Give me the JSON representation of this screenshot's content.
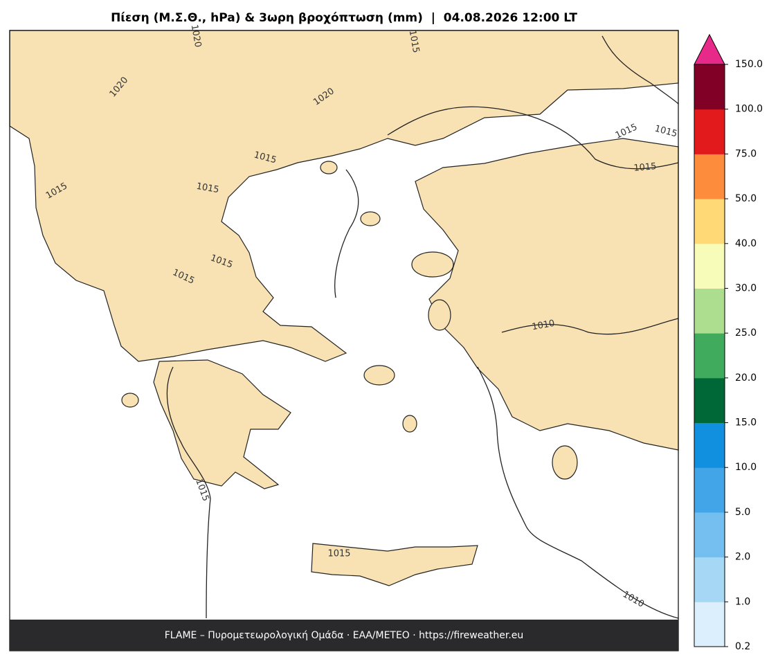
{
  "title": "Πίεση (Μ.Σ.Θ., hPa) & 3ωρη βροχόπτωση (mm)  |  04.08.2026 12:00 LT",
  "footer": "FLAME – Πυρομετεωρολογική Ομάδα · ΕΑΑ/METEO · https://fireweather.eu",
  "colorbar": {
    "ticks": [
      {
        "value": 0.2,
        "label": "0.2"
      },
      {
        "value": 1,
        "label": "1.0"
      },
      {
        "value": 2,
        "label": "2.0"
      },
      {
        "value": 5,
        "label": "5.0"
      },
      {
        "value": 10,
        "label": "10.0"
      },
      {
        "value": 15,
        "label": "15.0"
      },
      {
        "value": 20,
        "label": "20.0"
      },
      {
        "value": 25,
        "label": "25.0"
      },
      {
        "value": 30,
        "label": "30.0"
      },
      {
        "value": 40,
        "label": "40.0"
      },
      {
        "value": 50,
        "label": "50.0"
      },
      {
        "value": 75,
        "label": "75.0"
      },
      {
        "value": 100,
        "label": "100.0"
      },
      {
        "value": 150,
        "label": "150.0"
      }
    ],
    "colors": [
      "#dbeffd",
      "#a6d8f6",
      "#74bff0",
      "#42a5e8",
      "#1290e0",
      "#006837",
      "#41ab5d",
      "#addd8e",
      "#f7fcb9",
      "#fed976",
      "#fd8d3c",
      "#e31a1c",
      "#800026"
    ],
    "extend_color": "#e7298a"
  },
  "contour_labels": [
    "1020",
    "1015",
    "1020",
    "1020",
    "1015",
    "1015",
    "1015",
    "1015",
    "1015",
    "1015",
    "1015",
    "1015",
    "1010",
    "1015",
    "1015",
    "1010"
  ]
}
